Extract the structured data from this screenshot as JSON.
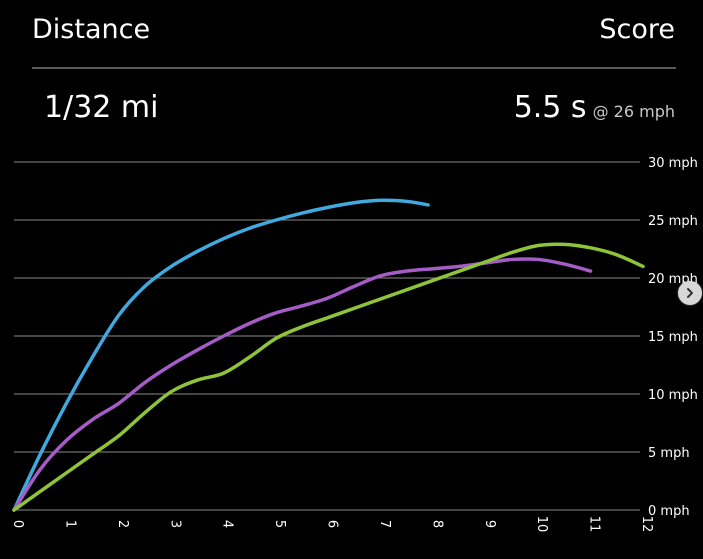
{
  "header": {
    "left_label": "Distance",
    "right_label": "Score"
  },
  "summary": {
    "distance": "1/32 mi",
    "score_time": "5.5 s",
    "score_speed": "@ 26 mph"
  },
  "icons": {
    "scroll_handle": "chevron-right-icon"
  },
  "chart_data": {
    "type": "line",
    "xlim": [
      0,
      12
    ],
    "ylim": [
      0,
      30
    ],
    "x_ticks": [
      "0",
      "1",
      "2",
      "3",
      "4",
      "5",
      "6",
      "7",
      "8",
      "9",
      "10",
      "11",
      "12"
    ],
    "y_ticks": [
      "0 mph",
      "5 mph",
      "10 mph",
      "15 mph",
      "20 mph",
      "25 mph",
      "30 mph"
    ],
    "y_tick_values": [
      0,
      5,
      10,
      15,
      20,
      25,
      30
    ],
    "grid": true,
    "series": [
      {
        "color": "#3fa9e0",
        "points": [
          [
            0,
            0
          ],
          [
            0.5,
            4.8
          ],
          [
            1,
            9.2
          ],
          [
            1.5,
            13.2
          ],
          [
            2,
            16.8
          ],
          [
            2.5,
            19.3
          ],
          [
            3,
            21
          ],
          [
            3.5,
            22.3
          ],
          [
            4,
            23.4
          ],
          [
            4.5,
            24.3
          ],
          [
            5,
            25
          ],
          [
            5.5,
            25.6
          ],
          [
            6,
            26.1
          ],
          [
            6.5,
            26.5
          ],
          [
            7,
            26.7
          ],
          [
            7.5,
            26.6
          ],
          [
            7.9,
            26.3
          ]
        ]
      },
      {
        "color": "#a45cc7",
        "points": [
          [
            0,
            0
          ],
          [
            0.5,
            3.5
          ],
          [
            1,
            6
          ],
          [
            1.5,
            7.8
          ],
          [
            2,
            9.2
          ],
          [
            2.5,
            11
          ],
          [
            3,
            12.5
          ],
          [
            3.5,
            13.8
          ],
          [
            4,
            15
          ],
          [
            4.5,
            16.1
          ],
          [
            5,
            17
          ],
          [
            5.5,
            17.6
          ],
          [
            6,
            18.3
          ],
          [
            6.5,
            19.3
          ],
          [
            7,
            20.2
          ],
          [
            7.5,
            20.6
          ],
          [
            8,
            20.8
          ],
          [
            8.5,
            21
          ],
          [
            9,
            21.3
          ],
          [
            9.5,
            21.6
          ],
          [
            10,
            21.6
          ],
          [
            10.5,
            21.2
          ],
          [
            11,
            20.6
          ]
        ]
      },
      {
        "color": "#8fc43a",
        "points": [
          [
            0,
            0
          ],
          [
            0.5,
            1.6
          ],
          [
            1,
            3.2
          ],
          [
            1.5,
            4.8
          ],
          [
            2,
            6.4
          ],
          [
            2.5,
            8.4
          ],
          [
            3,
            10.2
          ],
          [
            3.5,
            11.2
          ],
          [
            4,
            11.8
          ],
          [
            4.5,
            13.2
          ],
          [
            5,
            14.8
          ],
          [
            5.5,
            15.8
          ],
          [
            6,
            16.6
          ],
          [
            6.5,
            17.4
          ],
          [
            7,
            18.2
          ],
          [
            7.5,
            19
          ],
          [
            8,
            19.8
          ],
          [
            8.5,
            20.6
          ],
          [
            9,
            21.4
          ],
          [
            9.5,
            22.2
          ],
          [
            10,
            22.8
          ],
          [
            10.5,
            22.9
          ],
          [
            11,
            22.6
          ],
          [
            11.5,
            22
          ],
          [
            12,
            21
          ]
        ]
      }
    ]
  }
}
